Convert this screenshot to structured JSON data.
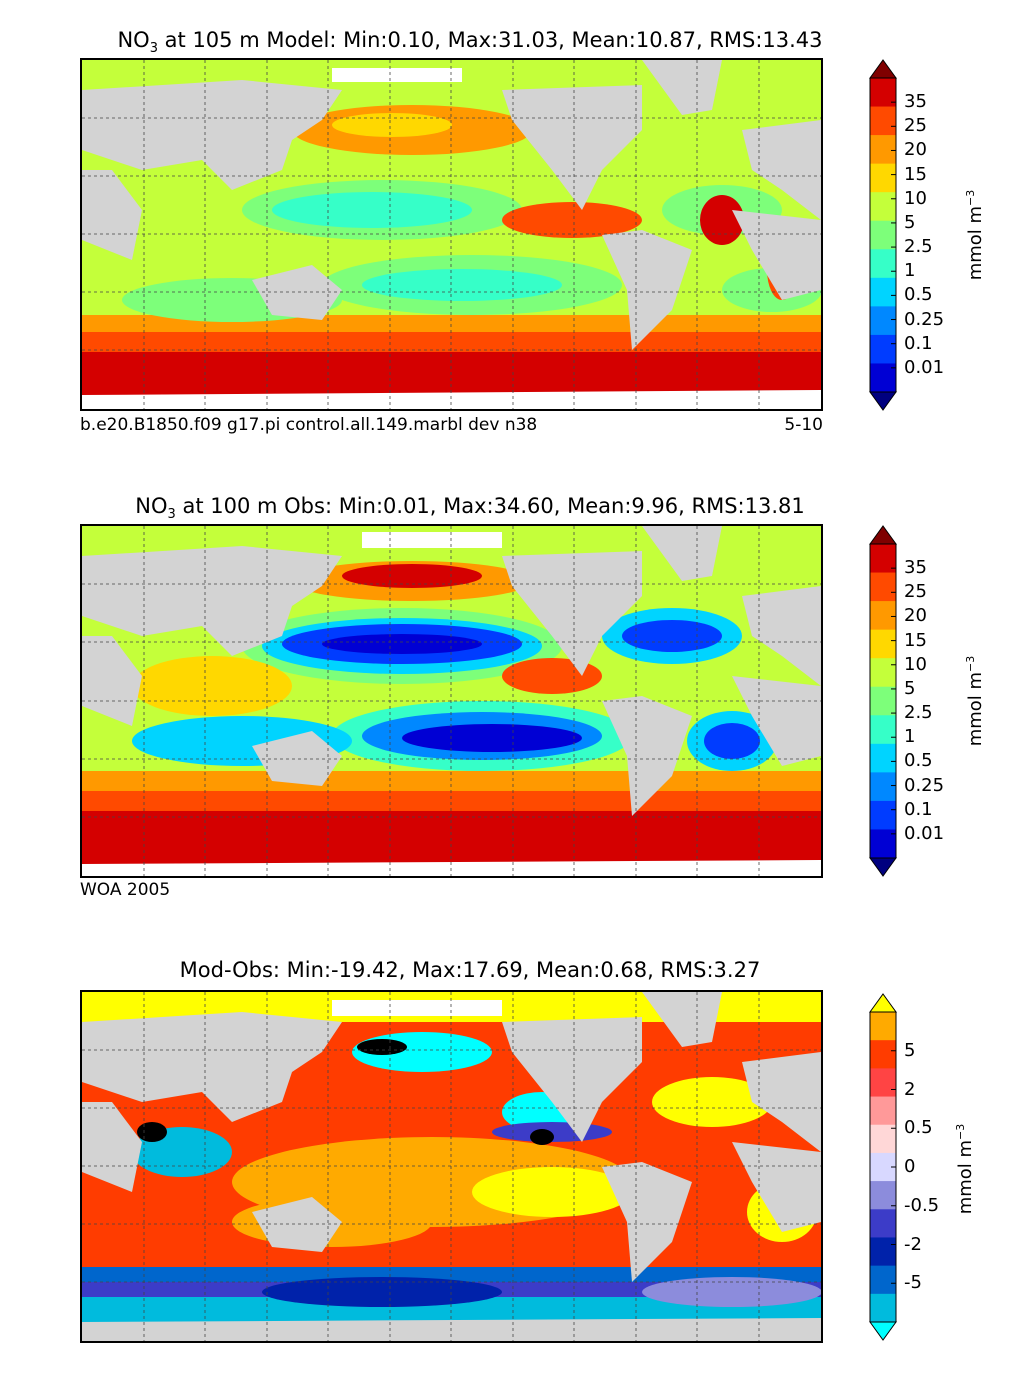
{
  "panels": [
    {
      "title_prefix": "NO",
      "title_sub": "3",
      "title_text": " at 105 m Model: Min:0.10, Max:31.03, Mean:10.87, RMS:13.43",
      "caption_left": "b.e20.B1850.f09 g17.pi control.all.149.marbl dev n38",
      "caption_right": "5-10",
      "colorbar": {
        "ticks": [
          "35",
          "25",
          "20",
          "15",
          "10",
          "5",
          "2.5",
          "1",
          "0.5",
          "0.25",
          "0.1",
          "0.01"
        ],
        "colors": [
          "#7f0000",
          "#d40000",
          "#ff4a00",
          "#ff9900",
          "#ffd800",
          "#c4ff3a",
          "#7dff7a",
          "#36ffc8",
          "#00d4ff",
          "#0088ff",
          "#003cff",
          "#0000d4",
          "#00007f"
        ],
        "unit": "mmol m",
        "unit_sup": "−3"
      }
    },
    {
      "title_prefix": "NO",
      "title_sub": "3",
      "title_text": " at 100 m Obs: Min:0.01, Max:34.60, Mean:9.96, RMS:13.81",
      "caption_left": "WOA 2005",
      "caption_right": "",
      "colorbar": {
        "ticks": [
          "35",
          "25",
          "20",
          "15",
          "10",
          "5",
          "2.5",
          "1",
          "0.5",
          "0.25",
          "0.1",
          "0.01"
        ],
        "colors": [
          "#7f0000",
          "#d40000",
          "#ff4a00",
          "#ff9900",
          "#ffd800",
          "#c4ff3a",
          "#7dff7a",
          "#36ffc8",
          "#00d4ff",
          "#0088ff",
          "#003cff",
          "#0000d4",
          "#00007f"
        ],
        "unit": "mmol m",
        "unit_sup": "−3"
      }
    },
    {
      "title_prefix": "",
      "title_sub": "",
      "title_text": "Mod-Obs: Min:-19.42, Max:17.69, Mean:0.68, RMS:3.27",
      "caption_left": "",
      "caption_right": "",
      "colorbar": {
        "ticks": [
          "5",
          "2",
          "0.5",
          "0",
          "-0.5",
          "-2",
          "-5"
        ],
        "colors": [
          "#ffff00",
          "#ffaa00",
          "#ff3c00",
          "#ff4444",
          "#ff9999",
          "#ffd7d7",
          "#d8d8ff",
          "#8c8cdc",
          "#3c3cc8",
          "#0022aa",
          "#0066cc",
          "#00bbdd",
          "#00ffff"
        ],
        "unit": "mmol m",
        "unit_sup": "−3"
      }
    }
  ],
  "map_colors": {
    "land": "#d3d3d3",
    "grid": "#444444"
  }
}
